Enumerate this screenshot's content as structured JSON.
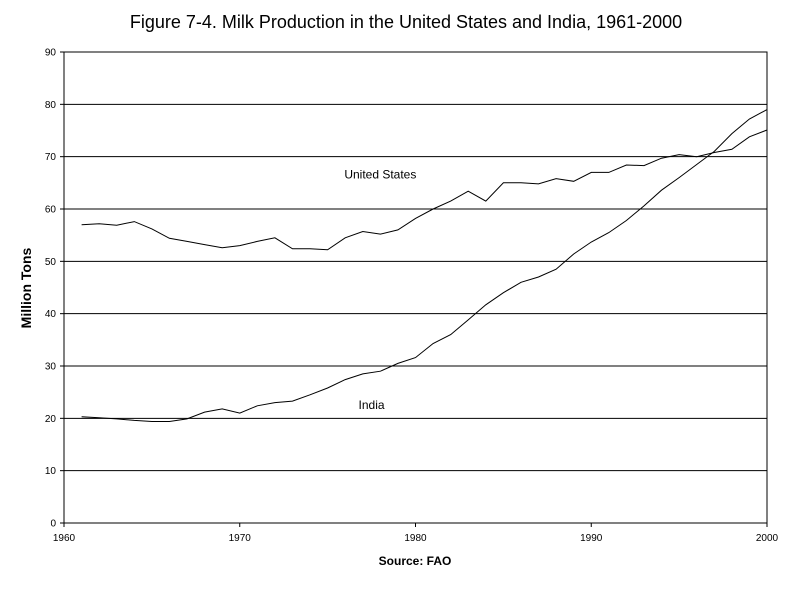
{
  "chart_data": {
    "type": "line",
    "title": "Figure 7-4. Milk Production in the United States and India, 1961-2000",
    "xlabel": "Source: FAO",
    "ylabel": "Million Tons",
    "xlim": [
      1960,
      2000
    ],
    "ylim": [
      0,
      90
    ],
    "xticks": [
      1960,
      1970,
      1980,
      1990,
      2000
    ],
    "yticks": [
      0,
      10,
      20,
      30,
      40,
      50,
      60,
      70,
      80,
      90
    ],
    "grid": "horizontal",
    "legend": "none",
    "x": [
      1961,
      1962,
      1963,
      1964,
      1965,
      1966,
      1967,
      1968,
      1969,
      1970,
      1971,
      1972,
      1973,
      1974,
      1975,
      1976,
      1977,
      1978,
      1979,
      1980,
      1981,
      1982,
      1983,
      1984,
      1985,
      1986,
      1987,
      1988,
      1989,
      1990,
      1991,
      1992,
      1993,
      1994,
      1995,
      1996,
      1997,
      1998,
      1999,
      2000
    ],
    "series": [
      {
        "name": "United States",
        "values": [
          57.0,
          57.2,
          56.9,
          57.6,
          56.2,
          54.4,
          53.8,
          53.2,
          52.6,
          53.0,
          53.8,
          54.5,
          52.4,
          52.4,
          52.2,
          54.5,
          55.7,
          55.2,
          56.0,
          58.2,
          60.0,
          61.5,
          63.4,
          61.5,
          65.0,
          65.0,
          64.8,
          65.8,
          65.3,
          67.0,
          67.0,
          68.4,
          68.3,
          69.7,
          70.4,
          70.0,
          70.8,
          71.4,
          73.8,
          75.1
        ]
      },
      {
        "name": "India",
        "values": [
          20.3,
          20.1,
          19.9,
          19.6,
          19.4,
          19.4,
          19.9,
          21.2,
          21.8,
          21.0,
          22.4,
          23.0,
          23.3,
          24.5,
          25.8,
          27.4,
          28.5,
          29.0,
          30.5,
          31.6,
          34.3,
          36.0,
          38.8,
          41.7,
          44.0,
          46.0,
          47.0,
          48.5,
          51.4,
          53.7,
          55.5,
          57.8,
          60.6,
          63.6,
          66.0,
          68.5,
          71.0,
          74.4,
          77.2,
          79.0
        ]
      }
    ],
    "annotations": [
      {
        "text": "United States",
        "x": 1978,
        "y": 65.8
      },
      {
        "text": "India",
        "x": 1977.5,
        "y": 21.8
      }
    ]
  }
}
